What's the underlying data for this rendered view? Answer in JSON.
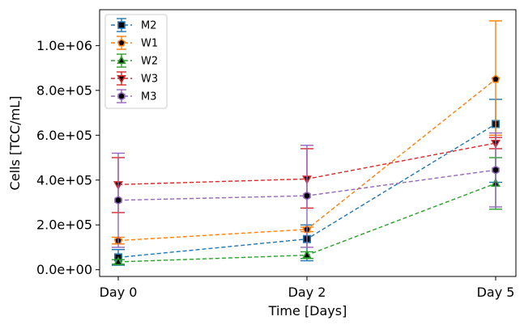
{
  "chart_data": {
    "type": "line",
    "title": "",
    "xlabel": "Time [Days]",
    "ylabel": "Cells [TCC/mL]",
    "categories": [
      "Day 0",
      "Day 2",
      "Day 5"
    ],
    "ylim": [
      -30000,
      1160000
    ],
    "yticks": [
      0,
      200000,
      400000,
      600000,
      800000,
      1000000
    ],
    "ytick_labels": [
      "0.0e+00",
      "2.0e+05",
      "4.0e+05",
      "6.0e+05",
      "8.0e+05",
      "1.0e+06"
    ],
    "grid": false,
    "legend_position": "top-left",
    "series": [
      {
        "name": "M2",
        "color": "#1f77b4",
        "marker": "square",
        "values": [
          55000,
          137000,
          650000
        ],
        "err_low": [
          20000,
          40000,
          390000
        ],
        "err_high": [
          90000,
          200000,
          760000
        ]
      },
      {
        "name": "W1",
        "color": "#ff7f0e",
        "marker": "pentagon",
        "values": [
          130000,
          180000,
          850000
        ],
        "err_low": [
          115000,
          170000,
          600000
        ],
        "err_high": [
          145000,
          190000,
          1110000
        ]
      },
      {
        "name": "W2",
        "color": "#2ca02c",
        "marker": "triangle-up",
        "values": [
          35000,
          65000,
          385000
        ],
        "err_low": [
          25000,
          50000,
          270000
        ],
        "err_high": [
          45000,
          80000,
          500000
        ]
      },
      {
        "name": "W3",
        "color": "#d62728",
        "marker": "triangle-down",
        "values": [
          380000,
          405000,
          565000
        ],
        "err_low": [
          255000,
          275000,
          540000
        ],
        "err_high": [
          500000,
          540000,
          590000
        ]
      },
      {
        "name": "M3",
        "color": "#9467bd",
        "marker": "hexagon",
        "values": [
          310000,
          330000,
          445000
        ],
        "err_low": [
          100000,
          100000,
          280000
        ],
        "err_high": [
          520000,
          555000,
          610000
        ]
      }
    ]
  }
}
